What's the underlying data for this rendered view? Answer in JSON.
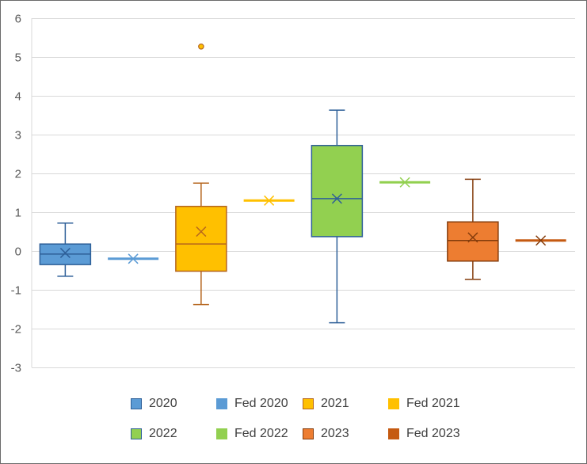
{
  "chart_data": {
    "type": "box",
    "ylim": [
      -3,
      6
    ],
    "yticks": [
      "-3",
      "-2",
      "-1",
      "0",
      "1",
      "2",
      "3",
      "4",
      "5",
      "6"
    ],
    "grid": true,
    "legend_position": "bottom",
    "series": [
      {
        "name": "2020",
        "kind": "box",
        "min": -0.65,
        "q1": -0.35,
        "median": -0.08,
        "q3": 0.18,
        "max": 0.72,
        "mean": -0.05,
        "outliers": [],
        "fill": "#5b9bd5",
        "stroke": "#2e5f98"
      },
      {
        "name": "Fed 2020",
        "kind": "point",
        "value": -0.2,
        "fill": "#5b9bd5",
        "stroke": "#5b9bd5"
      },
      {
        "name": "2021",
        "kind": "box",
        "min": -1.38,
        "q1": -0.52,
        "median": 0.18,
        "q3": 1.15,
        "max": 1.75,
        "mean": 0.5,
        "outliers": [
          5.27
        ],
        "fill": "#ffc000",
        "stroke": "#b5651d"
      },
      {
        "name": "Fed 2021",
        "kind": "point",
        "value": 1.3,
        "fill": "#ffc000",
        "stroke": "#ffc000"
      },
      {
        "name": "2022",
        "kind": "box",
        "min": -1.85,
        "q1": 0.37,
        "median": 1.35,
        "q3": 2.72,
        "max": 3.63,
        "mean": 1.35,
        "outliers": [],
        "fill": "#92d050",
        "stroke": "#2e5f98"
      },
      {
        "name": "Fed 2022",
        "kind": "point",
        "value": 1.77,
        "fill": "#92d050",
        "stroke": "#92d050"
      },
      {
        "name": "2023",
        "kind": "box",
        "min": -0.73,
        "q1": -0.26,
        "median": 0.27,
        "q3": 0.75,
        "max": 1.85,
        "mean": 0.35,
        "outliers": [],
        "fill": "#ed7d31",
        "stroke": "#843c0c"
      },
      {
        "name": "Fed 2023",
        "kind": "point",
        "value": 0.27,
        "fill": "#c55a11",
        "stroke": "#843c0c"
      }
    ]
  }
}
